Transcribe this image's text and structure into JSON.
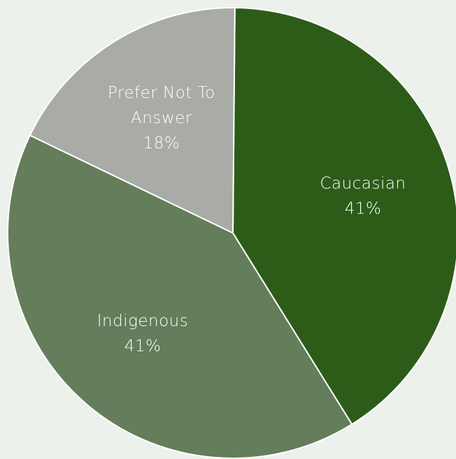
{
  "chart_data": {
    "type": "pie",
    "title": "",
    "start_angle_deg": 0.5,
    "direction": "clockwise",
    "legend": "none",
    "slices": [
      {
        "category": "Caucasian",
        "value": 41,
        "percent_label": "41%",
        "label_lines": [
          "Caucasian"
        ],
        "color": "#2d5c19"
      },
      {
        "category": "Indigenous",
        "value": 41,
        "percent_label": "41%",
        "label_lines": [
          "Indigenous"
        ],
        "color": "#647d5a"
      },
      {
        "category": "Prefer Not To Answer",
        "value": 18,
        "percent_label": "18%",
        "label_lines": [
          "Prefer Not To",
          "Answer"
        ],
        "color": "#a9aba6"
      }
    ]
  }
}
